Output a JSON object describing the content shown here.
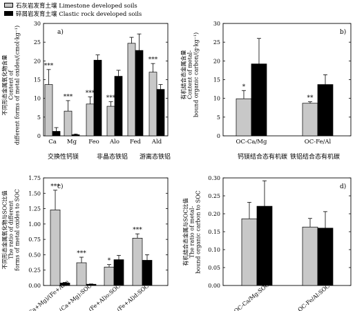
{
  "legend": [
    {
      "name": "石灰岩发育土壤 Limestone developed soils",
      "color": "#c8c8c8"
    },
    {
      "name": "碎屑岩发育土壤 Clastic rock developed soils",
      "color": "#000000"
    }
  ],
  "chart_data": [
    {
      "id": "a",
      "panel_label": "a)",
      "type": "bar",
      "ylabel_lines": [
        "不同形态金属氧化物含量",
        "Content of",
        "different forms of metal oxides/(cmol·kg⁻¹)"
      ],
      "ylim": [
        0,
        30
      ],
      "yticks": [
        0,
        5,
        10,
        15,
        20,
        25,
        30
      ],
      "categories": [
        "Ca",
        "Mg",
        "Feo",
        "Alo",
        "Fed",
        "Ald"
      ],
      "group_labels": [
        "交换性钙镁",
        "非晶态铁铝",
        "游离态铁铝"
      ],
      "series": [
        {
          "name": "石灰岩发育土壤 Limestone developed soils",
          "values": [
            13.7,
            6.6,
            8.5,
            7.9,
            24.7,
            17.0
          ],
          "errors": [
            4.0,
            2.8,
            1.9,
            1.2,
            1.6,
            2.3
          ]
        },
        {
          "name": "碎屑岩发育土壤 Clastic rock developed soils",
          "values": [
            1.2,
            0.3,
            20.2,
            15.9,
            22.8,
            12.4
          ],
          "errors": [
            1.0,
            0.2,
            1.4,
            1.6,
            4.4,
            1.3
          ]
        }
      ],
      "significance": [
        "***",
        "***",
        "***",
        "***",
        "",
        "***"
      ]
    },
    {
      "id": "b",
      "panel_label": "b)",
      "type": "bar",
      "ylabel_lines": [
        "有机结合态金属含量",
        "Content of metal-",
        "bound organic carbon/(g·kg⁻¹)"
      ],
      "ylim": [
        0,
        30
      ],
      "yticks": [
        0,
        5,
        10,
        15,
        20,
        25,
        30
      ],
      "categories": [
        "OC-Ca/Mg",
        "OC-Fe/Al"
      ],
      "group_labels": [
        "钙镁结合态有机碳",
        "铁铝结合态有机碳"
      ],
      "series": [
        {
          "name": "石灰岩发育土壤 Limestone developed soils",
          "values": [
            9.9,
            8.7
          ],
          "errors": [
            2.2,
            0.4
          ]
        },
        {
          "name": "碎屑岩发育土壤 Clastic rock developed soils",
          "values": [
            19.2,
            13.7
          ],
          "errors": [
            6.8,
            2.6
          ]
        }
      ],
      "significance": [
        "*",
        "**"
      ]
    },
    {
      "id": "c",
      "panel_label": "c)",
      "type": "bar",
      "ylabel_lines": [
        "不同形态金属氧化物与SOC比值",
        "The ratio of different",
        "forms of metal oxides to SOC"
      ],
      "ylim": [
        0,
        1.75
      ],
      "yticks": [
        0.0,
        0.25,
        0.5,
        0.75,
        1.0,
        1.25,
        1.5,
        1.75
      ],
      "ytick_labels": [
        "0.00",
        "0.25",
        "0.50",
        "0.75",
        "1.00",
        "1.25",
        "1.50",
        "1.75"
      ],
      "categories": [
        "(Ca+Mg)/(Fe+Al)o",
        "(Ca+Mg):SOC",
        "(Fe+Al)o:SOC",
        "(Fe+Al)d:SOC"
      ],
      "series": [
        {
          "name": "石灰岩发育土壤 Limestone developed soils",
          "values": [
            1.23,
            0.37,
            0.3,
            0.77
          ],
          "errors": [
            0.32,
            0.09,
            0.04,
            0.07
          ]
        },
        {
          "name": "碎屑岩发育土壤 Clastic rock developed soils",
          "values": [
            0.04,
            0.02,
            0.42,
            0.41
          ],
          "errors": [
            0.01,
            0.005,
            0.07,
            0.09
          ]
        }
      ],
      "significance": [
        "***",
        "***",
        "*",
        "***"
      ]
    },
    {
      "id": "d",
      "panel_label": "d)",
      "type": "bar",
      "ylabel_lines": [
        "有机结合态金属与SOC比值",
        "The ratio of metal-",
        "bound organic carbon to SOC"
      ],
      "ylim": [
        0,
        0.3
      ],
      "yticks": [
        0.0,
        0.05,
        0.1,
        0.15,
        0.2,
        0.25,
        0.3
      ],
      "ytick_labels": [
        "0.00",
        "0.05",
        "0.10",
        "0.15",
        "0.20",
        "0.25",
        "0.30"
      ],
      "categories": [
        "OC-Ca/Mg:SOC",
        "OC-Fe/Al:SOC"
      ],
      "series": [
        {
          "name": "石灰岩发育土壤 Limestone developed soils",
          "values": [
            0.186,
            0.163
          ],
          "errors": [
            0.046,
            0.024
          ]
        },
        {
          "name": "碎屑岩发育土壤 Clastic rock developed soils",
          "values": [
            0.221,
            0.16
          ],
          "errors": [
            0.071,
            0.046
          ]
        }
      ],
      "significance": [
        "",
        ""
      ]
    }
  ]
}
